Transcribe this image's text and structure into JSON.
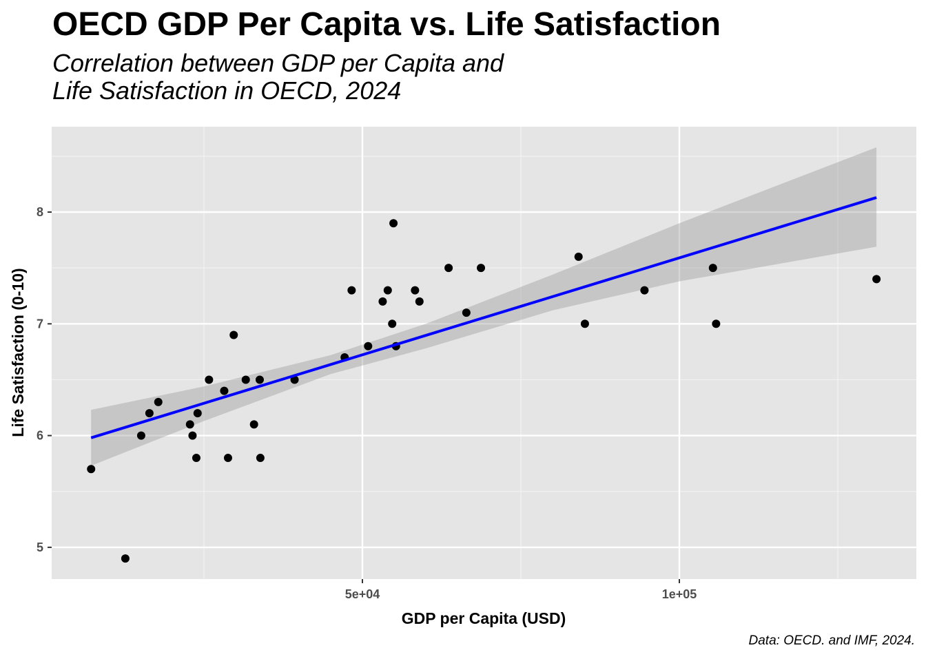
{
  "chart_data": {
    "type": "scatter",
    "title": "OECD GDP Per Capita vs. Life Satisfaction",
    "subtitle": "Correlation between GDP per Capita and\nLife Satisfaction in OECD, 2024",
    "caption": "Data: OECD. and IMF, 2024.",
    "xlabel": "GDP per Capita (USD)",
    "ylabel": "Life Satisfaction (0-10)",
    "xlim": [
      0,
      135000
    ],
    "ylim": [
      4.7,
      8.75
    ],
    "x_ticks": [
      {
        "value": 50000,
        "label": "5e+04"
      },
      {
        "value": 100000,
        "label": "1e+05"
      }
    ],
    "x_minor": [
      25000,
      75000,
      125000
    ],
    "y_ticks": [
      {
        "value": 5,
        "label": "5"
      },
      {
        "value": 6,
        "label": "6"
      },
      {
        "value": 7,
        "label": "7"
      },
      {
        "value": 8,
        "label": "8"
      }
    ],
    "y_minor": [
      5.5,
      6.5,
      7.5,
      8.5
    ],
    "grid": true,
    "points": [
      {
        "x": 7200,
        "y": 5.7
      },
      {
        "x": 12600,
        "y": 4.9
      },
      {
        "x": 15100,
        "y": 6.0
      },
      {
        "x": 16400,
        "y": 6.2
      },
      {
        "x": 17800,
        "y": 6.3
      },
      {
        "x": 22800,
        "y": 6.1
      },
      {
        "x": 23200,
        "y": 6.0
      },
      {
        "x": 23800,
        "y": 5.8
      },
      {
        "x": 24000,
        "y": 6.2
      },
      {
        "x": 25800,
        "y": 6.5
      },
      {
        "x": 28200,
        "y": 6.4
      },
      {
        "x": 28800,
        "y": 5.8
      },
      {
        "x": 29700,
        "y": 6.9
      },
      {
        "x": 31600,
        "y": 6.5
      },
      {
        "x": 32900,
        "y": 6.1
      },
      {
        "x": 33800,
        "y": 6.5
      },
      {
        "x": 33900,
        "y": 5.8
      },
      {
        "x": 39300,
        "y": 6.5
      },
      {
        "x": 47200,
        "y": 6.7
      },
      {
        "x": 48300,
        "y": 7.3
      },
      {
        "x": 50900,
        "y": 6.8
      },
      {
        "x": 53200,
        "y": 7.2
      },
      {
        "x": 54000,
        "y": 7.3
      },
      {
        "x": 54700,
        "y": 7.0
      },
      {
        "x": 54900,
        "y": 7.9
      },
      {
        "x": 55300,
        "y": 6.8
      },
      {
        "x": 58300,
        "y": 7.3
      },
      {
        "x": 59000,
        "y": 7.2
      },
      {
        "x": 63600,
        "y": 7.5
      },
      {
        "x": 66400,
        "y": 7.1
      },
      {
        "x": 68700,
        "y": 7.5
      },
      {
        "x": 84100,
        "y": 7.6
      },
      {
        "x": 85100,
        "y": 7.0
      },
      {
        "x": 94500,
        "y": 7.3
      },
      {
        "x": 105300,
        "y": 7.5
      },
      {
        "x": 105800,
        "y": 7.0
      },
      {
        "x": 131100,
        "y": 7.4
      }
    ],
    "trend_line": {
      "method": "linear",
      "color": "#0000ff",
      "x": [
        7200,
        131100
      ],
      "y": [
        5.98,
        8.13
      ]
    },
    "confidence_band": {
      "x": [
        7200,
        25000,
        45000,
        60000,
        80000,
        100000,
        131100
      ],
      "upper": [
        6.23,
        6.44,
        6.72,
        7.0,
        7.44,
        7.9,
        8.58
      ],
      "lower": [
        5.73,
        6.13,
        6.55,
        6.78,
        7.12,
        7.38,
        7.69
      ]
    }
  }
}
